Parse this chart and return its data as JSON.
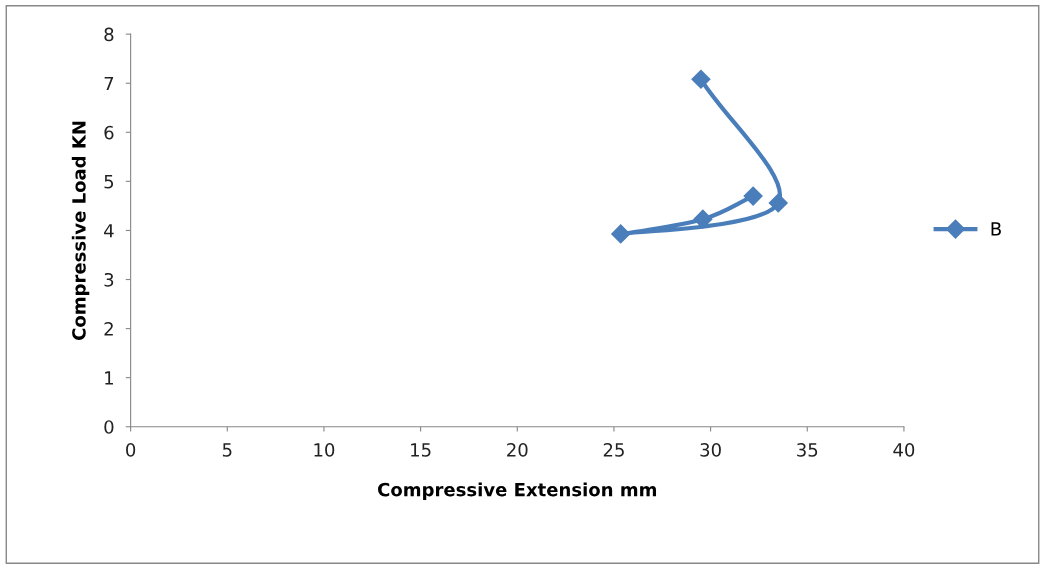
{
  "chart_data": {
    "type": "line",
    "xlabel": "Compressive Extension mm",
    "ylabel": "Compressive Load KN",
    "xlim": [
      0,
      40
    ],
    "xticks": [
      0,
      5,
      10,
      15,
      20,
      25,
      30,
      35,
      40
    ],
    "ylim": [
      0,
      8
    ],
    "yticks": [
      0,
      1,
      2,
      3,
      4,
      5,
      6,
      7,
      8
    ],
    "grid": false,
    "legend": "right",
    "marker": "diamond",
    "line_style": "solid",
    "series": [
      {
        "name": "B",
        "color": "#4a7ebb",
        "x": [
          29.5,
          33.5,
          25.35,
          29.6,
          32.2
        ],
        "values": [
          7.08,
          4.56,
          3.93,
          4.23,
          4.7
        ]
      }
    ]
  }
}
